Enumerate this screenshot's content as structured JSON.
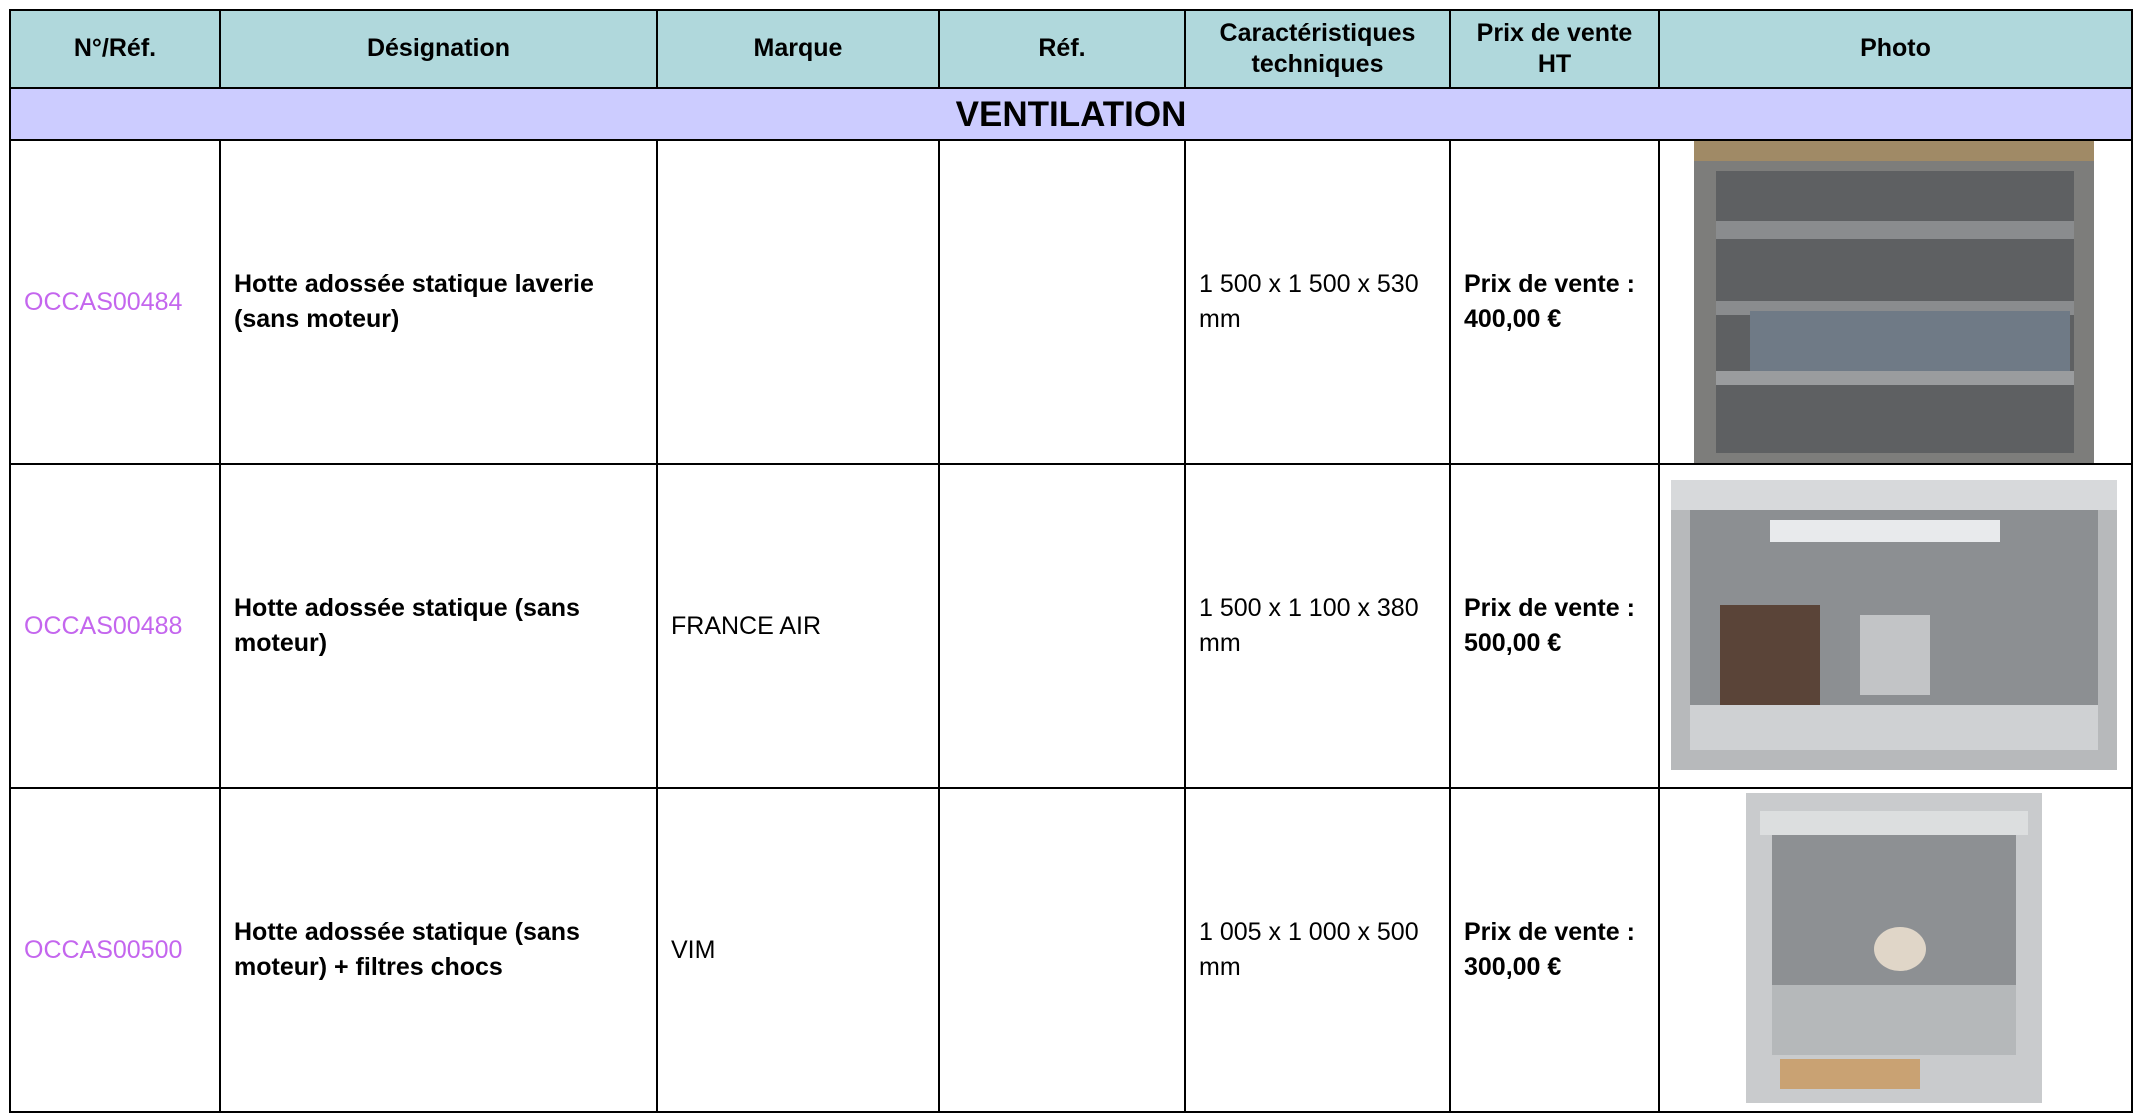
{
  "table": {
    "headers": [
      "N°/Réf.",
      "Désignation",
      "Marque",
      "Réf.",
      "Caractéristiques techniques",
      "Prix de vente HT",
      "Photo"
    ],
    "section": "VENTILATION",
    "rows": [
      {
        "ref": "OCCAS00484",
        "designation": "Hotte adossée statique laverie (sans moteur)",
        "specs": "1 500 x 1 500 x 530 mm",
        "price_label": "Prix de vente :",
        "price": "400,00 €"
      },
      {
        "ref": "OCCAS00488",
        "designation": "Hotte adossée statique (sans moteur)",
        "brand": "FRANCE AIR",
        "specs": "1 500 x 1 100 x 380 mm",
        "price_label": "Prix de vente :",
        "price": "500,00 €"
      },
      {
        "ref": "OCCAS00500",
        "designation": "Hotte adossée statique (sans moteur) + filtres chocs",
        "brand": "VIM",
        "specs": "1 005 x 1 000 x 500 mm",
        "price_label": "Prix de vente :",
        "price": "300,00 €"
      }
    ]
  }
}
